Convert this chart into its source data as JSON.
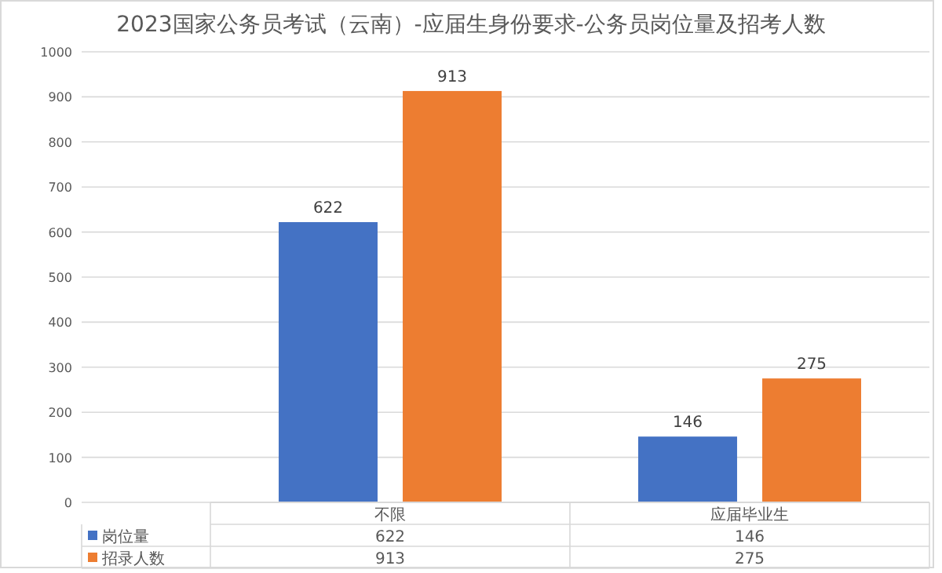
{
  "chart_data": {
    "type": "bar",
    "title": "2023国家公务员考试（云南）-应届生身份要求-公务员岗位量及招考人数",
    "categories": [
      "不限",
      "应届毕业生"
    ],
    "series": [
      {
        "name": "岗位量",
        "color": "#4472c4",
        "values": [
          622,
          146
        ]
      },
      {
        "name": "招录人数",
        "color": "#ed7d31",
        "values": [
          913,
          275
        ]
      }
    ],
    "annotations": [
      "622",
      "146",
      "913",
      "275"
    ],
    "ylim": [
      0,
      1000
    ],
    "yticks": [
      0,
      100,
      200,
      300,
      400,
      500,
      600,
      700,
      800,
      900,
      1000
    ],
    "grid": "y",
    "data_labels": true,
    "legend": "bottom"
  }
}
